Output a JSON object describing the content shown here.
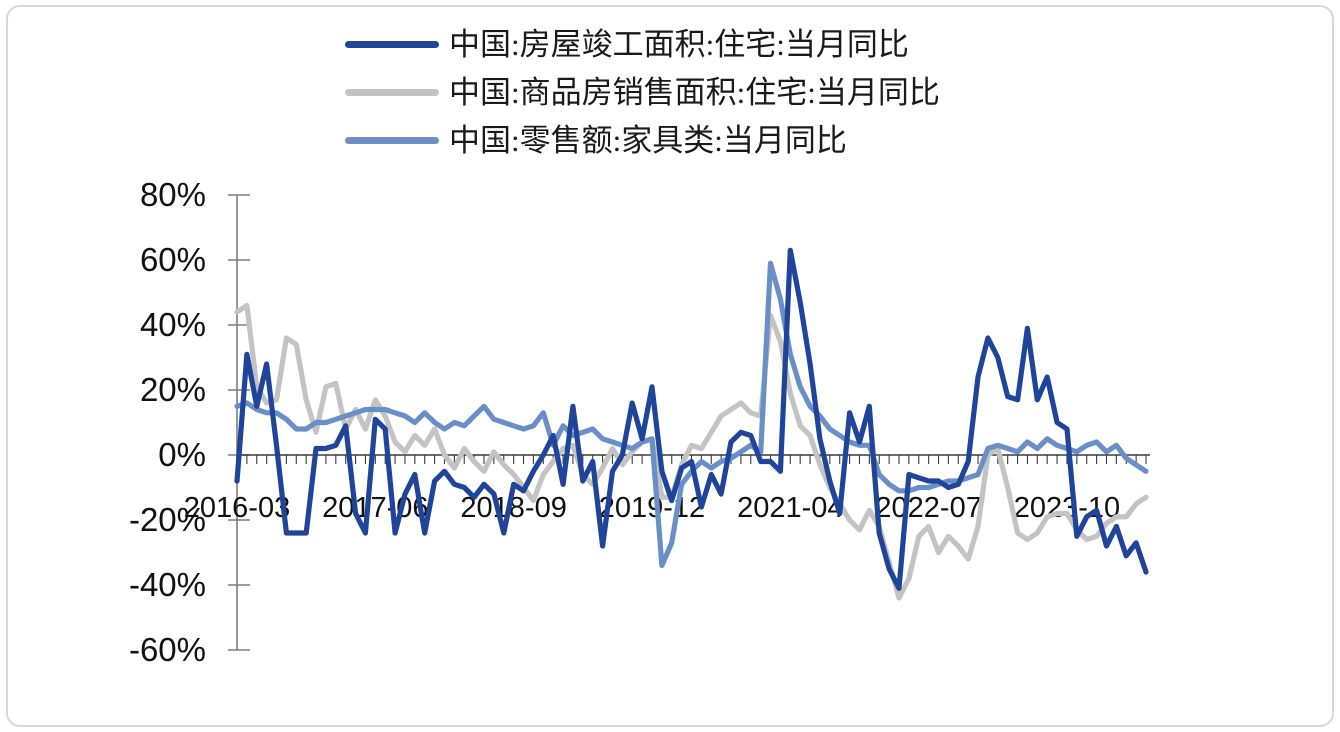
{
  "window": {
    "background_color": "#ffffff",
    "border_color": "#d8d8d8"
  },
  "chart_data": {
    "type": "line",
    "title": "",
    "xlabel": "",
    "ylabel": "",
    "grid": false,
    "legend_position": "top-center",
    "ylim": [
      -60,
      80
    ],
    "y_ticks": [
      80,
      60,
      40,
      20,
      0,
      -20,
      -40,
      -60
    ],
    "y_tick_labels": [
      "80%",
      "60%",
      "40%",
      "20%",
      "0%",
      "-20%",
      "-40%",
      "-60%"
    ],
    "x_tick_labels": [
      "2016-03",
      "2017-06",
      "2018-09",
      "2019-12",
      "2021-04",
      "2022-07",
      "2023-10"
    ],
    "x_label_indices": [
      0,
      14,
      28,
      42,
      56,
      70,
      84
    ],
    "x_months": [
      "2016-03",
      "2016-04",
      "2016-05",
      "2016-06",
      "2016-07",
      "2016-08",
      "2016-09",
      "2016-10",
      "2016-11",
      "2016-12",
      "2017-02",
      "2017-03",
      "2017-04",
      "2017-05",
      "2017-06",
      "2017-07",
      "2017-08",
      "2017-09",
      "2017-10",
      "2017-11",
      "2017-12",
      "2018-02",
      "2018-03",
      "2018-04",
      "2018-05",
      "2018-06",
      "2018-07",
      "2018-08",
      "2018-09",
      "2018-10",
      "2018-11",
      "2018-12",
      "2019-02",
      "2019-03",
      "2019-04",
      "2019-05",
      "2019-06",
      "2019-07",
      "2019-08",
      "2019-09",
      "2019-10",
      "2019-11",
      "2019-12",
      "2020-02",
      "2020-03",
      "2020-04",
      "2020-05",
      "2020-06",
      "2020-07",
      "2020-08",
      "2020-09",
      "2020-10",
      "2020-11",
      "2020-12",
      "2021-02",
      "2021-03",
      "2021-04",
      "2021-05",
      "2021-06",
      "2021-07",
      "2021-08",
      "2021-09",
      "2021-10",
      "2021-11",
      "2021-12",
      "2022-02",
      "2022-03",
      "2022-04",
      "2022-05",
      "2022-06",
      "2022-07",
      "2022-08",
      "2022-09",
      "2022-10",
      "2022-11",
      "2022-12",
      "2023-02",
      "2023-03",
      "2023-04",
      "2023-05",
      "2023-06",
      "2023-07",
      "2023-08",
      "2023-09",
      "2023-10",
      "2023-11",
      "2023-12",
      "2024-02",
      "2024-03",
      "2024-04",
      "2024-05",
      "2024-06",
      "2024-07"
    ],
    "axis_colors": {
      "y_axis": "#7f7f7f",
      "x_axis": "#3a3a3a"
    },
    "series": [
      {
        "key": "completion",
        "name": "中国:房屋竣工面积:住宅:当月同比",
        "color": "#1F459B",
        "values": [
          -8,
          31,
          15,
          28,
          3,
          -24,
          -24,
          -24,
          2,
          2,
          3,
          9,
          -18,
          -24,
          11,
          8,
          -24,
          -12,
          -6,
          -24,
          -8,
          -5,
          -9,
          -10,
          -13,
          -9,
          -12,
          -24,
          -9,
          -11,
          -5,
          0,
          6,
          -9,
          15,
          -8,
          -2,
          -28,
          -5,
          0,
          16,
          5,
          21,
          -5,
          -14,
          -4,
          -2,
          -16,
          -6,
          -12,
          4,
          7,
          6,
          -2,
          -2,
          -5,
          63,
          47,
          28,
          5,
          -8,
          -18,
          13,
          4,
          15,
          -24,
          -35,
          -41,
          -6,
          -7,
          -8,
          -8,
          -10,
          -9,
          -2,
          24,
          36,
          30,
          18,
          17,
          39,
          17,
          24,
          10,
          8,
          -25,
          -19,
          -17,
          -28,
          -22,
          -31,
          -27,
          -36
        ]
      },
      {
        "key": "sales-area",
        "name": "中国:商品房销售面积:住宅:当月同比",
        "color": "#C3C3C3",
        "values": [
          44,
          46,
          21,
          16,
          17,
          36,
          34,
          17,
          7,
          21,
          22,
          8,
          14,
          8,
          17,
          12,
          4,
          1,
          6,
          3,
          8,
          0,
          -4,
          2,
          -2,
          -5,
          1,
          -3,
          -6,
          -10,
          -14,
          -6,
          -2,
          2,
          3,
          -6,
          -9,
          -4,
          2,
          -3,
          1,
          4,
          5,
          -13,
          -13,
          -3,
          3,
          2,
          7,
          12,
          14,
          16,
          13,
          12,
          43,
          35,
          19,
          9,
          6,
          -3,
          -10,
          -15,
          -20,
          -23,
          -17,
          -22,
          -33,
          -44,
          -38,
          -25,
          -22,
          -30,
          -25,
          -28,
          -32,
          -22,
          0,
          2,
          -10,
          -24,
          -26,
          -24,
          -19,
          -18,
          -18,
          -23,
          -26,
          -25,
          -21,
          -19,
          -19,
          -15,
          -13
        ]
      },
      {
        "key": "furniture-retail",
        "name": "中国:零售额:家具类:当月同比",
        "color": "#6A8FC8",
        "values": [
          15,
          16,
          14,
          13,
          13,
          11,
          8,
          8,
          10,
          10,
          11,
          12,
          13,
          14,
          14,
          14,
          13,
          12,
          10,
          13,
          10,
          8,
          10,
          9,
          12,
          15,
          11,
          10,
          9,
          8,
          9,
          13,
          3,
          9,
          6,
          7,
          8,
          5,
          4,
          3,
          2,
          4,
          5,
          -34,
          -27,
          -9,
          -5,
          -2,
          -4,
          -2,
          -1,
          1,
          3,
          1,
          59,
          48,
          31,
          21,
          15,
          12,
          8,
          6,
          4,
          3,
          3,
          -6,
          -9,
          -11,
          -11,
          -10,
          -10,
          -9,
          -8,
          -8,
          -7,
          -6,
          2,
          3,
          2,
          1,
          4,
          2,
          5,
          3,
          2,
          1,
          3,
          4,
          1,
          3,
          -1,
          -3,
          -5
        ]
      }
    ],
    "layout": {
      "plot_left": 237,
      "plot_right": 1146,
      "plot_top": 195,
      "plot_bottom": 650,
      "zero_y": 455,
      "y_tick_cross_left": 228,
      "y_tick_cross_right": 250,
      "x_minor_tick_len": 9,
      "y_label_right_x": 206,
      "x_label_baseline_y": 517,
      "line_width": 5.2,
      "draw_order": [
        1,
        2,
        0
      ]
    }
  }
}
